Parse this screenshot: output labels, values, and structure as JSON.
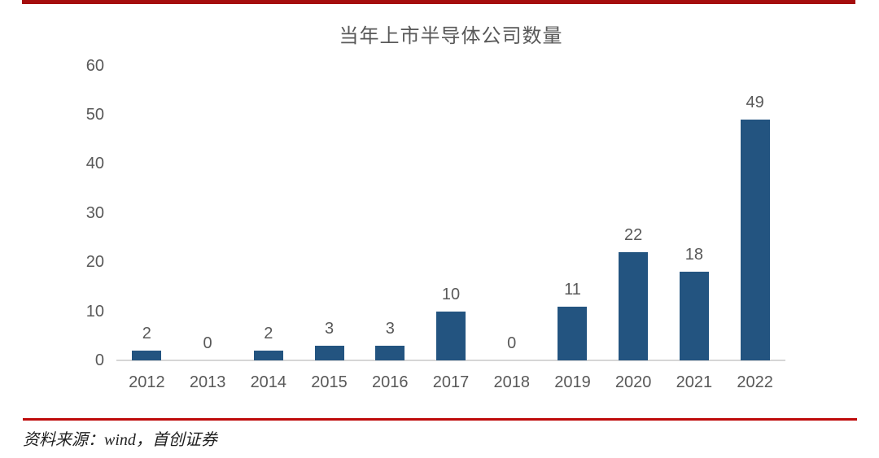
{
  "page": {
    "top_rule_color": "#A50E0E",
    "bottom_rule_color": "#BE0A0A",
    "background_color": "#FFFFFF"
  },
  "chart_data": {
    "type": "bar",
    "title": "当年上市半导体公司数量",
    "categories": [
      "2012",
      "2013",
      "2014",
      "2015",
      "2016",
      "2017",
      "2018",
      "2019",
      "2020",
      "2021",
      "2022"
    ],
    "values": [
      2,
      0,
      2,
      3,
      3,
      10,
      0,
      11,
      22,
      18,
      49
    ],
    "bar_color": "#235480",
    "label_color": "#595959",
    "axis_line_color": "#D6D6D6",
    "xlabel": "",
    "ylabel": "",
    "ylim": [
      0,
      60
    ],
    "yticks": [
      0,
      10,
      20,
      30,
      40,
      50,
      60
    ],
    "grid": false,
    "legend": false,
    "value_labels": true
  },
  "source_note": {
    "text": "资料来源：wind，首创证券"
  }
}
